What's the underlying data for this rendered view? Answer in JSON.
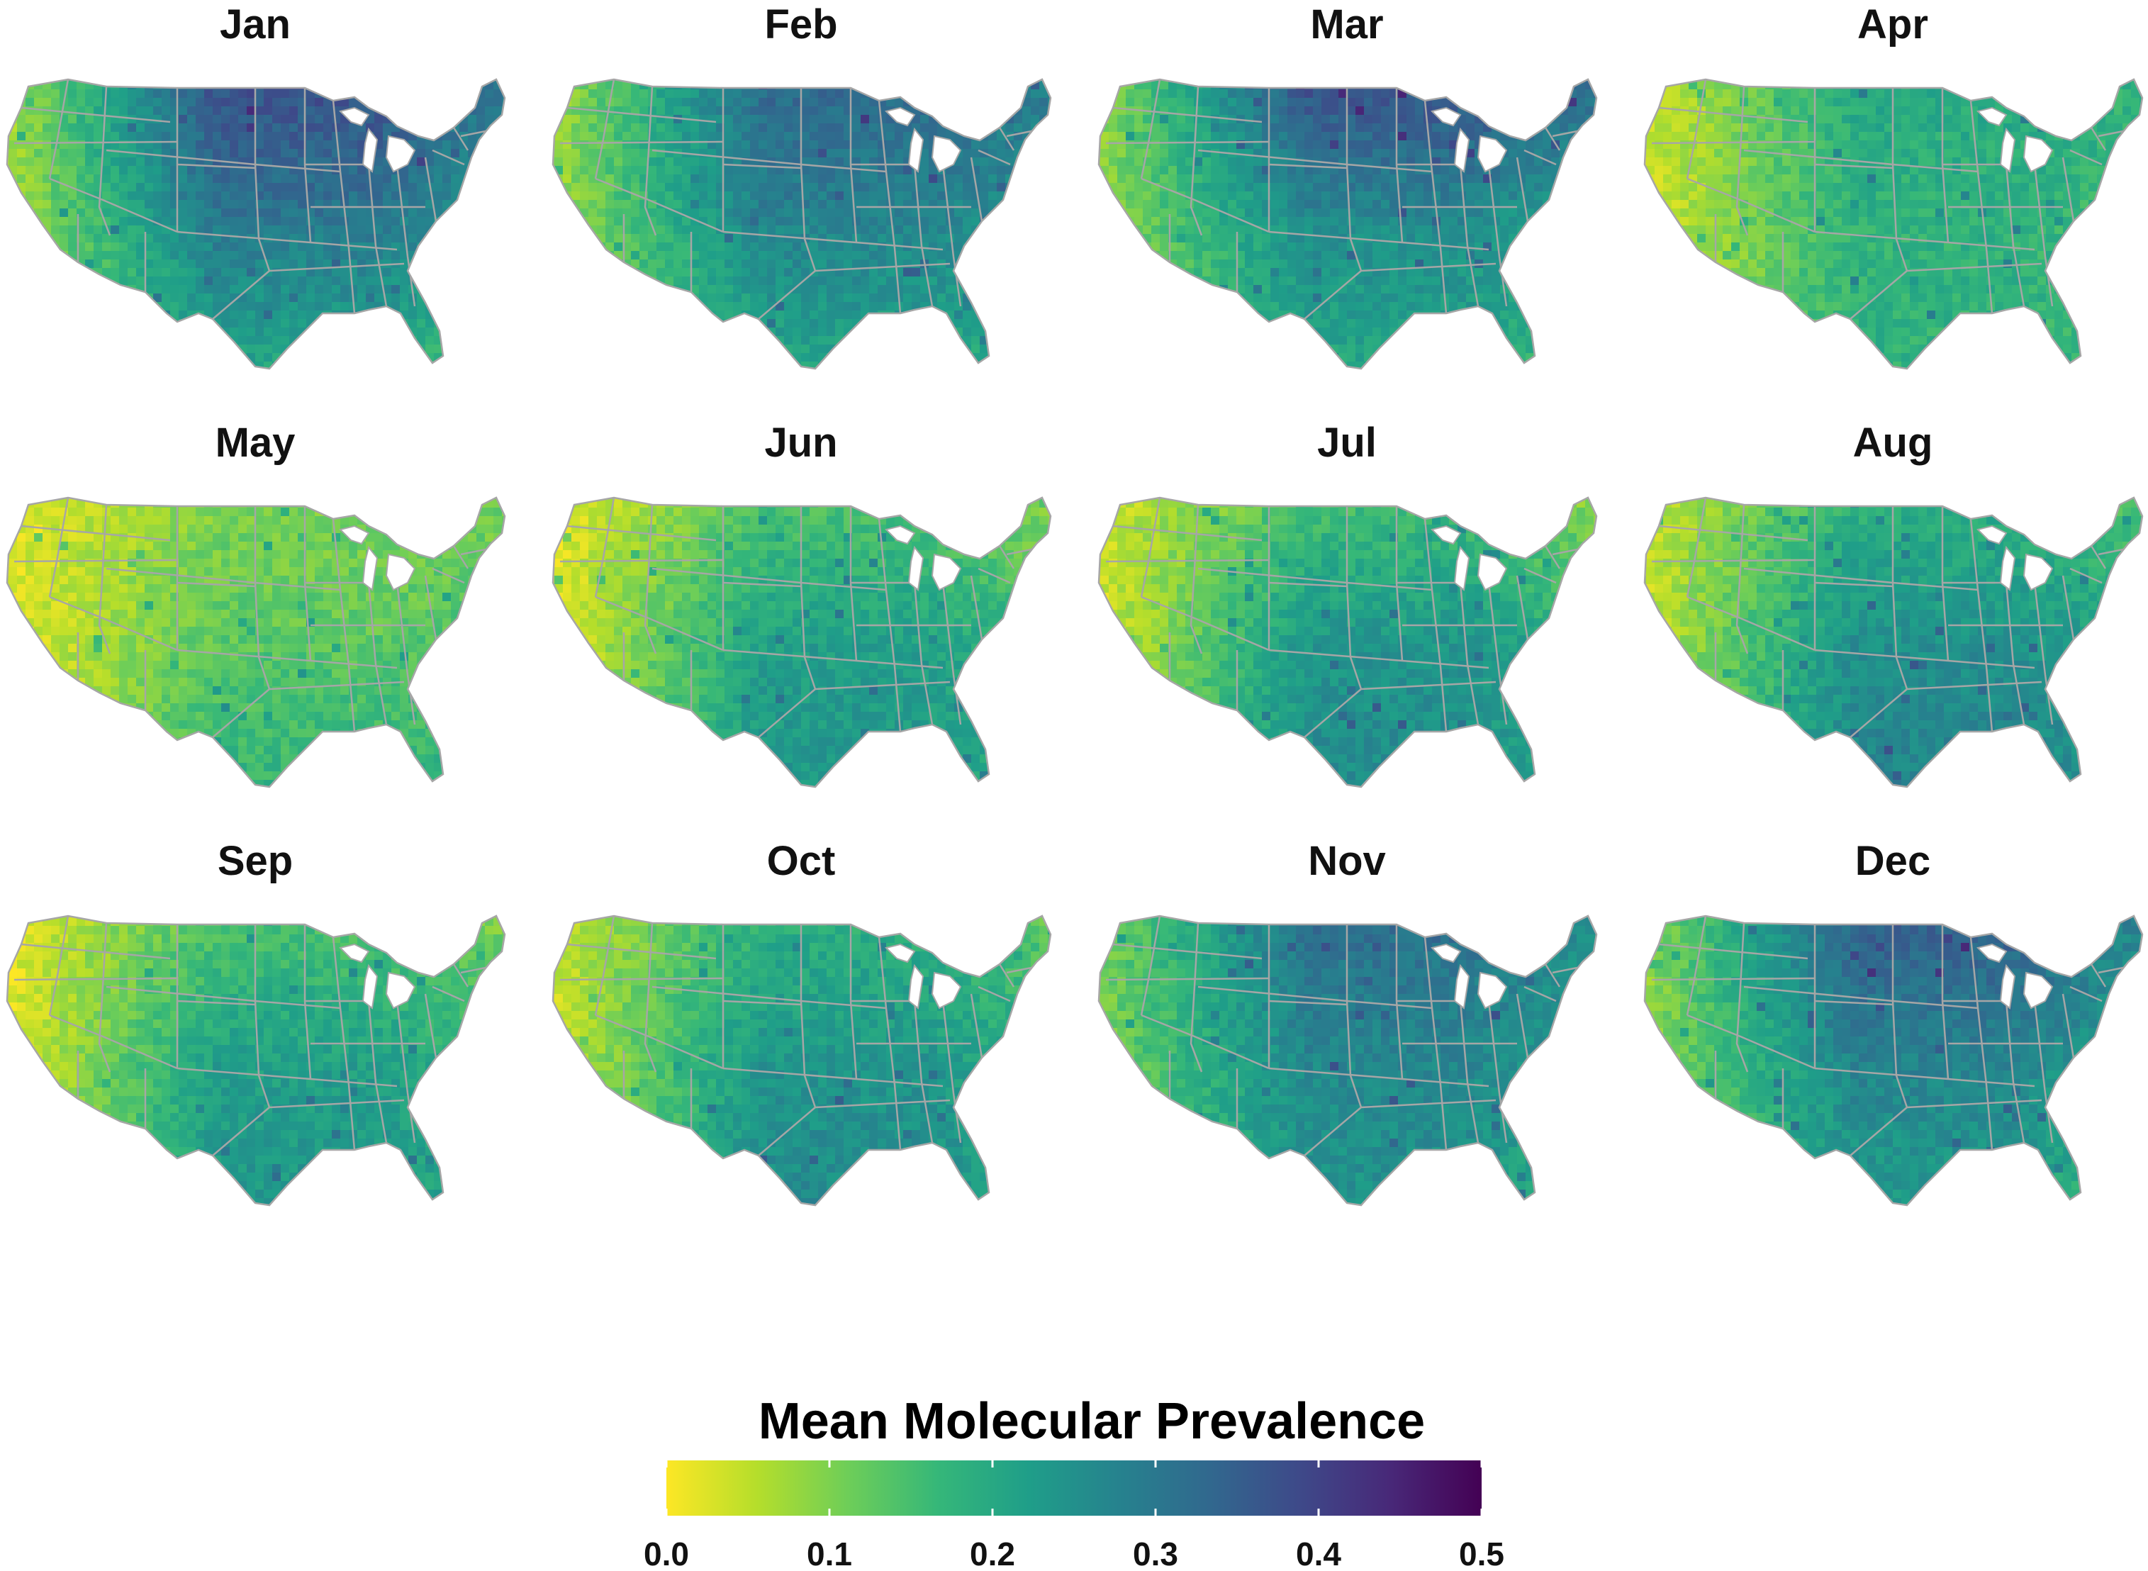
{
  "figure": {
    "panels": [
      {
        "id": "jan",
        "label": "Jan",
        "west": 0.06,
        "central": 0.3,
        "north": 0.38,
        "south": 0.2,
        "east": 0.22
      },
      {
        "id": "feb",
        "label": "Feb",
        "west": 0.07,
        "central": 0.28,
        "north": 0.33,
        "south": 0.2,
        "east": 0.24
      },
      {
        "id": "mar",
        "label": "Mar",
        "west": 0.08,
        "central": 0.26,
        "north": 0.38,
        "south": 0.2,
        "east": 0.2
      },
      {
        "id": "apr",
        "label": "Apr",
        "west": 0.03,
        "central": 0.18,
        "north": 0.2,
        "south": 0.18,
        "east": 0.16
      },
      {
        "id": "may",
        "label": "May",
        "west": 0.02,
        "central": 0.13,
        "north": 0.1,
        "south": 0.18,
        "east": 0.14
      },
      {
        "id": "jun",
        "label": "Jun",
        "west": 0.02,
        "central": 0.22,
        "north": 0.14,
        "south": 0.24,
        "east": 0.16
      },
      {
        "id": "jul",
        "label": "Jul",
        "west": 0.03,
        "central": 0.24,
        "north": 0.15,
        "south": 0.26,
        "east": 0.17
      },
      {
        "id": "aug",
        "label": "Aug",
        "west": 0.04,
        "central": 0.25,
        "north": 0.18,
        "south": 0.28,
        "east": 0.2
      },
      {
        "id": "sep",
        "label": "Sep",
        "west": 0.02,
        "central": 0.22,
        "north": 0.14,
        "south": 0.24,
        "east": 0.17
      },
      {
        "id": "oct",
        "label": "Oct",
        "west": 0.04,
        "central": 0.24,
        "north": 0.18,
        "south": 0.26,
        "east": 0.18
      },
      {
        "id": "nov",
        "label": "Nov",
        "west": 0.1,
        "central": 0.27,
        "north": 0.32,
        "south": 0.24,
        "east": 0.2
      },
      {
        "id": "dec",
        "label": "Dec",
        "west": 0.08,
        "central": 0.28,
        "north": 0.35,
        "south": 0.22,
        "east": 0.2
      }
    ]
  },
  "legend": {
    "title": "Mean Molecular Prevalence",
    "range": [
      0.0,
      0.5
    ],
    "ticks": [
      {
        "value": 0.0,
        "label": "0.0"
      },
      {
        "value": 0.1,
        "label": "0.1"
      },
      {
        "value": 0.2,
        "label": "0.2"
      },
      {
        "value": 0.3,
        "label": "0.3"
      },
      {
        "value": 0.4,
        "label": "0.4"
      },
      {
        "value": 0.5,
        "label": "0.5"
      }
    ],
    "colormap": [
      "#fde725",
      "#b5de2b",
      "#6ece58",
      "#35b779",
      "#1f9e89",
      "#26828e",
      "#31688e",
      "#3e4989",
      "#482878",
      "#440154"
    ],
    "border_color": "#a6a6a6"
  }
}
